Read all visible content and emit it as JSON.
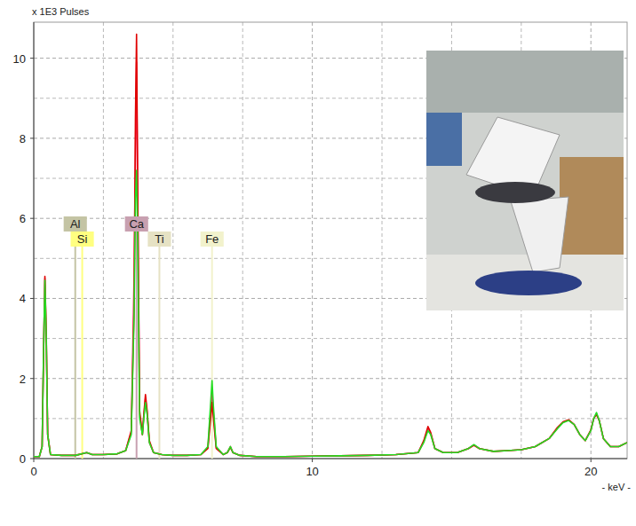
{
  "chart_data": {
    "type": "line",
    "y_label": "x 1E3 Pulses",
    "x_label": "- keV -",
    "xlim": [
      0,
      21.3
    ],
    "ylim": [
      0,
      10.9
    ],
    "xticks": [
      0,
      10,
      20
    ],
    "yticks": [
      0,
      2,
      4,
      6,
      8,
      10
    ],
    "grid": true,
    "x": [
      0,
      0.2,
      0.3,
      0.35,
      0.4,
      0.45,
      0.5,
      0.6,
      1.0,
      1.5,
      1.9,
      2.1,
      2.5,
      3.0,
      3.3,
      3.5,
      3.6,
      3.65,
      3.69,
      3.73,
      3.8,
      3.9,
      3.95,
      4.01,
      4.07,
      4.15,
      4.3,
      4.6,
      5.0,
      5.5,
      6.0,
      6.25,
      6.35,
      6.4,
      6.45,
      6.55,
      6.8,
      6.95,
      7.06,
      7.15,
      7.4,
      8.0,
      9,
      10,
      11,
      12,
      13,
      13.8,
      14.0,
      14.15,
      14.25,
      14.4,
      14.7,
      15.2,
      15.6,
      15.8,
      16.0,
      16.5,
      17,
      17.5,
      18,
      18.5,
      18.8,
      19.0,
      19.2,
      19.4,
      19.6,
      19.8,
      20.0,
      20.1,
      20.2,
      20.3,
      20.45,
      20.7,
      21,
      21.3
    ],
    "series": [
      {
        "color": "#ff2a6a",
        "values": [
          0.05,
          0.05,
          0.3,
          2.55,
          4.5,
          3.0,
          0.6,
          0.1,
          0.08,
          0.08,
          0.15,
          0.1,
          0.1,
          0.12,
          0.2,
          0.65,
          4.5,
          7.6,
          9.9,
          6.5,
          1.1,
          0.6,
          1.05,
          1.5,
          1.15,
          0.4,
          0.15,
          0.1,
          0.08,
          0.08,
          0.1,
          0.28,
          1.2,
          1.65,
          1.15,
          0.28,
          0.1,
          0.15,
          0.3,
          0.15,
          0.08,
          0.05,
          0.05,
          0.06,
          0.07,
          0.08,
          0.1,
          0.15,
          0.42,
          0.75,
          0.62,
          0.25,
          0.15,
          0.15,
          0.25,
          0.34,
          0.25,
          0.18,
          0.2,
          0.22,
          0.3,
          0.5,
          0.76,
          0.91,
          0.96,
          0.85,
          0.6,
          0.45,
          0.71,
          1.0,
          1.12,
          0.95,
          0.5,
          0.3,
          0.3,
          0.4
        ]
      },
      {
        "color": "#e00000",
        "values": [
          0.05,
          0.05,
          0.3,
          2.5,
          4.55,
          3.1,
          0.6,
          0.1,
          0.08,
          0.08,
          0.15,
          0.1,
          0.1,
          0.12,
          0.2,
          0.7,
          3.7,
          8.5,
          10.6,
          7.0,
          1.2,
          0.6,
          1.1,
          1.6,
          1.2,
          0.45,
          0.15,
          0.1,
          0.08,
          0.08,
          0.1,
          0.25,
          1.0,
          1.4,
          1.0,
          0.25,
          0.1,
          0.15,
          0.28,
          0.15,
          0.08,
          0.05,
          0.05,
          0.06,
          0.07,
          0.08,
          0.1,
          0.15,
          0.45,
          0.8,
          0.65,
          0.25,
          0.15,
          0.15,
          0.25,
          0.33,
          0.25,
          0.18,
          0.2,
          0.22,
          0.3,
          0.5,
          0.78,
          0.92,
          0.97,
          0.85,
          0.6,
          0.45,
          0.72,
          1.0,
          1.1,
          0.95,
          0.5,
          0.3,
          0.3,
          0.4
        ]
      },
      {
        "color": "#22dd22",
        "values": [
          0.05,
          0.05,
          0.3,
          2.6,
          4.45,
          3.0,
          0.6,
          0.1,
          0.08,
          0.08,
          0.15,
          0.1,
          0.1,
          0.12,
          0.2,
          0.6,
          3.5,
          6.5,
          7.2,
          5.5,
          1.0,
          0.6,
          1.0,
          1.4,
          1.1,
          0.4,
          0.15,
          0.1,
          0.08,
          0.08,
          0.1,
          0.3,
          1.4,
          1.95,
          1.3,
          0.3,
          0.1,
          0.15,
          0.3,
          0.15,
          0.08,
          0.05,
          0.05,
          0.06,
          0.07,
          0.08,
          0.1,
          0.15,
          0.4,
          0.7,
          0.6,
          0.25,
          0.15,
          0.15,
          0.25,
          0.35,
          0.25,
          0.18,
          0.2,
          0.22,
          0.3,
          0.5,
          0.75,
          0.9,
          0.95,
          0.85,
          0.6,
          0.45,
          0.7,
          1.0,
          1.15,
          0.95,
          0.5,
          0.3,
          0.3,
          0.4
        ]
      }
    ],
    "markers": [
      {
        "label": "Al",
        "energy": 1.49,
        "color": "#c4c4a4"
      },
      {
        "label": "Si",
        "energy": 1.74,
        "color": "#ffff80"
      },
      {
        "label": "Ca",
        "energy": 3.69,
        "color": "#c8a0b0"
      },
      {
        "label": "Ti",
        "energy": 4.51,
        "color": "#e6e2c4"
      },
      {
        "label": "Fe",
        "energy": 6.4,
        "color": "#f2f2cc"
      }
    ]
  }
}
